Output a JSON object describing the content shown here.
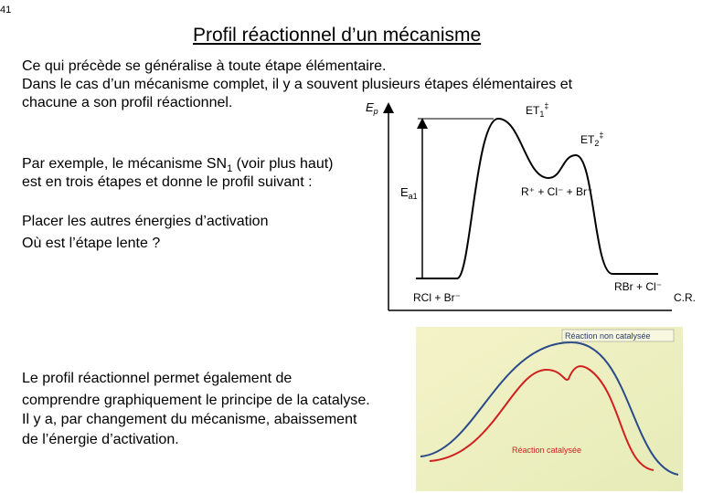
{
  "page_number": "41",
  "title": "Profil réactionnel d’un mécanisme",
  "intro": [
    "Ce qui précède se généralise à toute étape élémentaire.",
    "Dans le cas d’un mécanisme complet, il y a souvent plusieurs étapes élémentaires et",
    "chacune a son profil réactionnel."
  ],
  "example": {
    "line1_start": "Par exemple, le mécanisme SN",
    "line1_sub": "1",
    "line1_end": " (voir plus haut)",
    "line2": "est en trois étapes et donne le profil suivant :"
  },
  "questions": [
    "Placer les autres énergies d’activation",
    "Où est l’étape lente ?"
  ],
  "catalysis": [
    "Le profil réactionnel permet également de",
    "comprendre graphiquement le principe de la catalyse.",
    "Il y a, par changement du mécanisme, abaissement",
    "de l’énergie d’activation."
  ],
  "profile": {
    "axis_y": {
      "base": "E",
      "sub": "p"
    },
    "axis_x": "C.R.",
    "ts1": {
      "base": "ET",
      "sub": "1",
      "sup": "‡"
    },
    "ts2": {
      "base": "ET",
      "sub": "2",
      "sup": "‡"
    },
    "ea1": {
      "base": "E",
      "sub": "a1"
    },
    "intermediate": "R⁺ + Cl⁻ + Br⁻",
    "reactants": "RCl + Br⁻",
    "products": "RBr + Cl⁻"
  },
  "catalysis_figure": {
    "uncatalysed": "Réaction non catalysée",
    "catalysed": "Réaction catalysée"
  }
}
